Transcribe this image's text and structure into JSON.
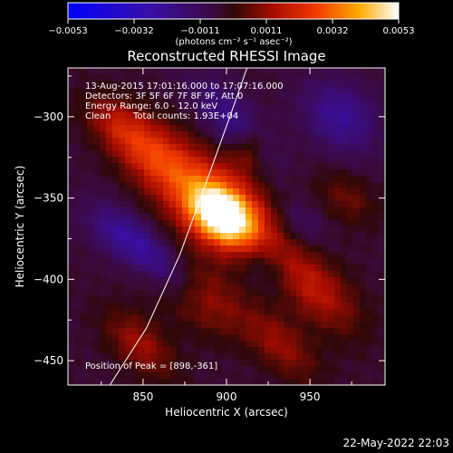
{
  "colorbar": {
    "tick_labels": [
      "−0.0053",
      "−0.0032",
      "−0.0011",
      "0.0011",
      "0.0032",
      "0.0053"
    ],
    "unit_label": "(photons cm⁻² s⁻¹ asec⁻²)",
    "range": [
      -0.0053,
      0.0053
    ],
    "colormap": "IDL color table 3 style: blue → purple → dark red → red → orange → yellow → white"
  },
  "chart_data": {
    "type": "heatmap",
    "title": "Reconstructed RHESSI Image",
    "xlabel": "Heliocentric X (arcsec)",
    "ylabel": "Heliocentric Y (arcsec)",
    "xlim": [
      805,
      995
    ],
    "ylim": [
      -465,
      -270
    ],
    "x_ticks": [
      850,
      900,
      950
    ],
    "y_ticks": [
      -300,
      -350,
      -400,
      -450
    ],
    "annotations": [
      "13-Aug-2015 17:01:16.000 to 17:07:16.000",
      "Detectors: 3F 5F 6F 7F 8F 9F, Att 0",
      "Energy Range: 6.0 - 12.0 keV",
      "Clean",
      "Total counts: 1.93E+04",
      "Position of Peak = [898,-361]"
    ],
    "peak": {
      "x": 898,
      "y": -361
    },
    "limb_line": [
      [
        827,
        -470
      ],
      [
        852,
        -430
      ],
      [
        872,
        -385
      ],
      [
        888,
        -340
      ],
      [
        902,
        -300
      ],
      [
        913,
        -268
      ]
    ],
    "emission_sources": [
      {
        "x": 898,
        "y": -361,
        "sx": 16,
        "sy": 11,
        "rot_deg": -38,
        "amp": 0.0052
      },
      {
        "x": 893,
        "y": -352,
        "sx": 30,
        "sy": 18,
        "rot_deg": -40,
        "amp": 0.0025
      },
      {
        "x": 858,
        "y": -325,
        "sx": 20,
        "sy": 12,
        "rot_deg": -40,
        "amp": 0.0022
      },
      {
        "x": 835,
        "y": -305,
        "sx": 16,
        "sy": 10,
        "rot_deg": -40,
        "amp": 0.0016
      },
      {
        "x": 913,
        "y": -320,
        "sx": 8,
        "sy": 10,
        "rot_deg": -10,
        "amp": 0.0016
      },
      {
        "x": 952,
        "y": -405,
        "sx": 24,
        "sy": 12,
        "rot_deg": -45,
        "amp": 0.002
      },
      {
        "x": 885,
        "y": -412,
        "sx": 20,
        "sy": 12,
        "rot_deg": -40,
        "amp": 0.0018
      },
      {
        "x": 932,
        "y": -440,
        "sx": 20,
        "sy": 10,
        "rot_deg": -45,
        "amp": 0.0015
      },
      {
        "x": 848,
        "y": -440,
        "sx": 18,
        "sy": 10,
        "rot_deg": -45,
        "amp": 0.0016
      },
      {
        "x": 972,
        "y": -350,
        "sx": 14,
        "sy": 10,
        "rot_deg": -40,
        "amp": 0.001
      },
      {
        "x": 862,
        "y": -392,
        "sx": 24,
        "sy": 8,
        "rot_deg": -45,
        "amp": -0.0016
      },
      {
        "x": 905,
        "y": -305,
        "sx": 24,
        "sy": 10,
        "rot_deg": -50,
        "amp": -0.0017
      },
      {
        "x": 968,
        "y": -300,
        "sx": 18,
        "sy": 14,
        "rot_deg": -45,
        "amp": -0.0018
      },
      {
        "x": 835,
        "y": -372,
        "sx": 18,
        "sy": 10,
        "rot_deg": -40,
        "amp": -0.0014
      },
      {
        "x": 945,
        "y": -365,
        "sx": 12,
        "sy": 8,
        "rot_deg": -45,
        "amp": -0.001
      },
      {
        "x": 922,
        "y": -392,
        "sx": 14,
        "sy": 8,
        "rot_deg": -45,
        "amp": -0.0009
      }
    ]
  },
  "footer": {
    "timestamp": "22-May-2022 22:03"
  }
}
